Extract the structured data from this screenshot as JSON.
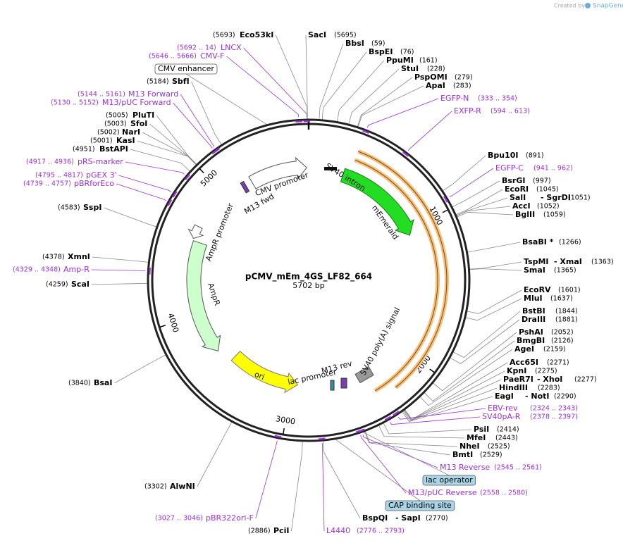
{
  "credit": {
    "prefix": "Created by",
    "brand": "SnapGene"
  },
  "title": "pCMV_mEm_4GS_LF82_664",
  "size": "5702 bp",
  "ruler": [
    "1000",
    "2000",
    "3000",
    "4000",
    "5000"
  ],
  "enzymes": [
    {
      "name": "Eco53kI",
      "pos": "(5693)"
    },
    {
      "name": "SacI",
      "pos": "(5695)"
    },
    {
      "name": "BbsI",
      "pos": "(59)"
    },
    {
      "name": "BspEI",
      "pos": "(76)"
    },
    {
      "name": "PpuMI",
      "pos": "(161)"
    },
    {
      "name": "StuI",
      "pos": "(228)"
    },
    {
      "name": "PspOMI",
      "pos": "(279)"
    },
    {
      "name": "ApaI",
      "pos": "(283)"
    },
    {
      "name": "Bpu10I",
      "pos": "(891)"
    },
    {
      "name": "BsrGI",
      "pos": "(997)"
    },
    {
      "name": "EcoRI",
      "pos": "(1045)"
    },
    {
      "name": "SalI",
      "name2": "- SgrDI",
      "pos": "(1051)"
    },
    {
      "name": "AccI",
      "pos": "(1052)"
    },
    {
      "name": "BglII",
      "pos": "(1059)"
    },
    {
      "name": "BsaBI *",
      "pos": "(1266)"
    },
    {
      "name": "TspMI",
      "name2": "- XmaI",
      "pos": "(1363)"
    },
    {
      "name": "SmaI",
      "pos": "(1365)"
    },
    {
      "name": "EcoRV",
      "pos": "(1601)"
    },
    {
      "name": "MluI",
      "pos": "(1637)"
    },
    {
      "name": "BstBI",
      "pos": "(1844)"
    },
    {
      "name": "DraIII",
      "pos": "(1881)"
    },
    {
      "name": "PshAI",
      "pos": "(2052)"
    },
    {
      "name": "BmgBI",
      "pos": "(2126)"
    },
    {
      "name": "AgeI",
      "pos": "(2159)"
    },
    {
      "name": "Acc65I",
      "pos": "(2271)"
    },
    {
      "name": "KpnI",
      "pos": "(2275)"
    },
    {
      "name": "PaeR7I",
      "name2": "- XhoI",
      "pos": "(2277)"
    },
    {
      "name": "HindIII",
      "pos": "(2283)"
    },
    {
      "name": "EagI",
      "name2": "- NotI",
      "pos": "(2290)"
    },
    {
      "name": "PsiI",
      "pos": "(2414)"
    },
    {
      "name": "MfeI",
      "pos": "(2443)"
    },
    {
      "name": "NheI",
      "pos": "(2525)"
    },
    {
      "name": "BmtI",
      "pos": "(2529)"
    },
    {
      "name": "BspQI",
      "name2": "- SapI",
      "pos": "(2770)"
    },
    {
      "name": "PciI",
      "pos": "(2886)"
    },
    {
      "name": "AlwNI",
      "pos": "(3302)"
    },
    {
      "name": "BsaI",
      "pos": "(3840)"
    },
    {
      "name": "ScaI",
      "pos": "(4259)"
    },
    {
      "name": "XmnI",
      "pos": "(4378)"
    },
    {
      "name": "SspI",
      "pos": "(4583)"
    },
    {
      "name": "BstAPI",
      "pos": "(4951)"
    },
    {
      "name": "KasI",
      "pos": "(5001)"
    },
    {
      "name": "NarI",
      "pos": "(5002)"
    },
    {
      "name": "SfoI",
      "pos": "(5003)"
    },
    {
      "name": "PluTI",
      "pos": "(5005)"
    },
    {
      "name": "SbfI",
      "pos": "(5184)"
    }
  ],
  "primers": [
    {
      "name": "LNCX",
      "pos": "(5692 .. 14)"
    },
    {
      "name": "CMV-F",
      "pos": "(5646 .. 5666)"
    },
    {
      "name": "EGFP-N",
      "pos": "(333 .. 354)"
    },
    {
      "name": "EXFP-R",
      "pos": "(594 .. 613)"
    },
    {
      "name": "EGFP-C",
      "pos": "(941 .. 962)"
    },
    {
      "name": "EBV-rev",
      "pos": "(2324 .. 2343)"
    },
    {
      "name": "SV40pA-R",
      "pos": "(2378 .. 2397)"
    },
    {
      "name": "M13 Reverse",
      "pos": "(2545 .. 2561)"
    },
    {
      "name": "M13/pUC Reverse",
      "pos": "(2558 .. 2580)"
    },
    {
      "name": "L4440",
      "pos": "(2776 .. 2793)"
    },
    {
      "name": "pBR322ori-F",
      "pos": "(3027 .. 3046)"
    },
    {
      "name": "Amp-R",
      "pos": "(4329 .. 4348)"
    },
    {
      "name": "pBRforEco",
      "pos": "(4739 .. 4757)"
    },
    {
      "name": "pGEX 3'",
      "pos": "(4795 .. 4817)"
    },
    {
      "name": "pRS-marker",
      "pos": "(4917 .. 4936)"
    },
    {
      "name": "M13/pUC Forward",
      "pos": "(5130 .. 5152)"
    },
    {
      "name": "M13 Forward",
      "pos": "(5144 .. 5161)"
    }
  ],
  "boxed": [
    "CMV enhancer",
    "lac operator",
    "CAP binding site"
  ],
  "features": [
    "CMV promoter",
    "M13 fwd",
    "SV40 intron",
    "mEmerald",
    "SV40 poly(A) signal",
    "M13 rev",
    "lac promoter",
    "ori",
    "AmpR",
    "AmpR promoter"
  ]
}
